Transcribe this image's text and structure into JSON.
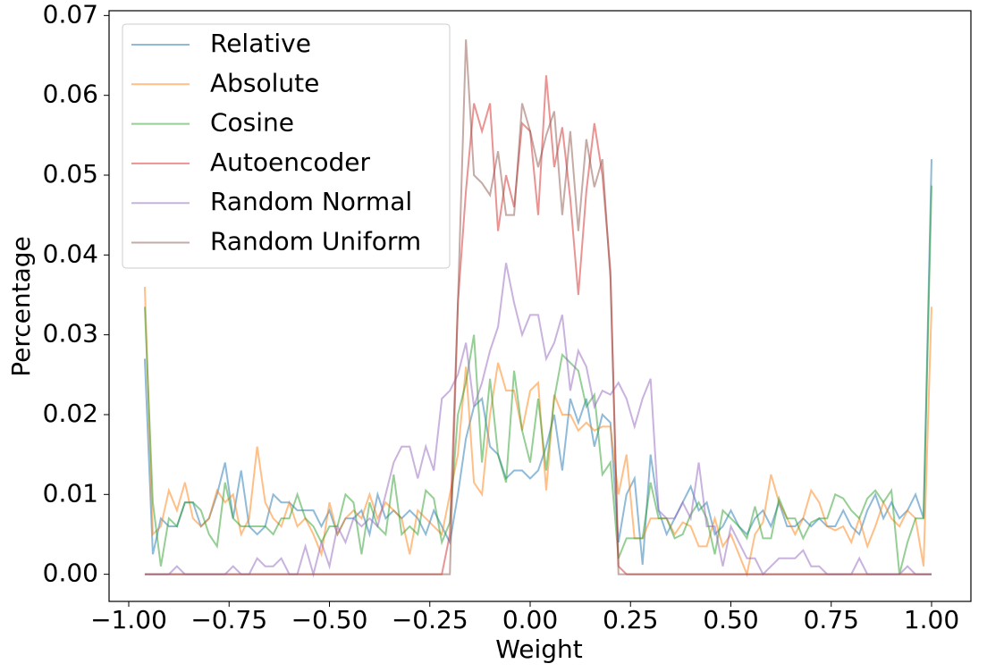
{
  "chart_data": {
    "type": "line",
    "xlabel": "Weight",
    "ylabel": "Percentage",
    "xlim": [
      -1.049,
      1.098
    ],
    "ylim": [
      -0.0034,
      0.0706
    ],
    "xticks": [
      {
        "value": -1,
        "label": "−1.00"
      },
      {
        "value": -0.75,
        "label": "−0.75"
      },
      {
        "value": -0.5,
        "label": "−0.50"
      },
      {
        "value": -0.25,
        "label": "−0.25"
      },
      {
        "value": 0,
        "label": "0.00"
      },
      {
        "value": 0.25,
        "label": "0.25"
      },
      {
        "value": 0.5,
        "label": "0.50"
      },
      {
        "value": 0.75,
        "label": "0.75"
      },
      {
        "value": 1,
        "label": "1.00"
      }
    ],
    "yticks": [
      {
        "value": 0,
        "label": "0.00"
      },
      {
        "value": 0.01,
        "label": "0.01"
      },
      {
        "value": 0.02,
        "label": "0.02"
      },
      {
        "value": 0.03,
        "label": "0.03"
      },
      {
        "value": 0.04,
        "label": "0.04"
      },
      {
        "value": 0.05,
        "label": "0.05"
      },
      {
        "value": 0.06,
        "label": "0.06"
      },
      {
        "value": 0.07,
        "label": "0.07"
      }
    ],
    "legend": "upper left",
    "x": [
      -0.96,
      -0.94,
      -0.92,
      -0.9,
      -0.88,
      -0.86,
      -0.84,
      -0.82,
      -0.8,
      -0.78,
      -0.76,
      -0.74,
      -0.72,
      -0.7,
      -0.68,
      -0.66,
      -0.64,
      -0.62,
      -0.6,
      -0.58,
      -0.56,
      -0.54,
      -0.52,
      -0.5,
      -0.48,
      -0.46,
      -0.44,
      -0.42,
      -0.4,
      -0.38,
      -0.36,
      -0.34,
      -0.32,
      -0.3,
      -0.28,
      -0.26,
      -0.24,
      -0.22,
      -0.2,
      -0.18,
      -0.16,
      -0.14,
      -0.12,
      -0.1,
      -0.08,
      -0.06,
      -0.04,
      -0.02,
      0,
      0.02,
      0.04,
      0.06,
      0.08,
      0.1,
      0.12,
      0.14,
      0.16,
      0.18,
      0.2,
      0.22,
      0.24,
      0.26,
      0.28,
      0.3,
      0.32,
      0.34,
      0.36,
      0.38,
      0.4,
      0.42,
      0.44,
      0.46,
      0.48,
      0.5,
      0.52,
      0.54,
      0.56,
      0.58,
      0.6,
      0.62,
      0.64,
      0.66,
      0.68,
      0.7,
      0.72,
      0.74,
      0.76,
      0.78,
      0.8,
      0.82,
      0.84,
      0.86,
      0.88,
      0.9,
      0.92,
      0.94,
      0.96,
      0.98,
      1.0
    ],
    "series": [
      {
        "name": "Relative",
        "color": "#1f77b4",
        "values": [
          0.027,
          0.0025,
          0.007,
          0.006,
          0.006,
          0.009,
          0.009,
          0.006,
          0.007,
          0.01,
          0.014,
          0.007,
          0.013,
          0.006,
          0.005,
          0.006,
          0.01,
          0.009,
          0.009,
          0.008,
          0.008,
          0.008,
          0.006,
          0.008,
          0.005,
          0.007,
          0.007,
          0.008,
          0.005,
          0.01,
          0.007,
          0.008,
          0.007,
          0.008,
          0.007,
          0.005,
          0.008,
          0.006,
          0.004,
          0.01,
          0.017,
          0.021,
          0.022,
          0.016,
          0.015,
          0.012,
          0.013,
          0.013,
          0.012,
          0.013,
          0.016,
          0.02,
          0.013,
          0.022,
          0.019,
          0.022,
          0.016,
          0.02,
          0.019,
          0.004,
          0.01,
          0.012,
          0.0012,
          0.015,
          0.008,
          0.005,
          0.007,
          0.009,
          0.011,
          0.008,
          0.009,
          0.005,
          0.006,
          0.008,
          0.006,
          0.005,
          0.007,
          0.008,
          0.006,
          0.009,
          0.006,
          0.006,
          0.007,
          0.006,
          0.007,
          0.006,
          0.006,
          0.008,
          0.006,
          0.005,
          0.008,
          0.01,
          0.007,
          0.009,
          0.007,
          0.008,
          0.01,
          0.007,
          0.052
        ]
      },
      {
        "name": "Absolute",
        "color": "#ff7f0e",
        "values": [
          0.036,
          0.005,
          0.006,
          0.0105,
          0.008,
          0.0115,
          0.007,
          0.006,
          0.007,
          0.0105,
          0.009,
          0.01,
          0.005,
          0.007,
          0.016,
          0.009,
          0.007,
          0.006,
          0.009,
          0.006,
          0.007,
          0.005,
          0.0025,
          0.009,
          0.005,
          0.007,
          0.008,
          0.007,
          0.01,
          0.007,
          0.009,
          0.008,
          0.007,
          0.0025,
          0.008,
          0.007,
          0.006,
          0.005,
          0.01,
          0.015,
          0.026,
          0.0115,
          0.01,
          0.02,
          0.0265,
          0.023,
          0.023,
          0.018,
          0.023,
          0.024,
          0.0105,
          0.0225,
          0.02,
          0.02,
          0.018,
          0.019,
          0.018,
          0.0185,
          0.0185,
          0.01,
          0.015,
          0.0045,
          0.0045,
          0.007,
          0.007,
          0.007,
          0.005,
          0.0065,
          0.006,
          0.0035,
          0.0035,
          0.007,
          0.0035,
          0.005,
          0.0025,
          0.0,
          0.005,
          0.0065,
          0.0125,
          0.009,
          0.007,
          0.005,
          0.007,
          0.0105,
          0.009,
          0.006,
          0.0055,
          0.006,
          0.004,
          0.007,
          0.0035,
          0.006,
          0.009,
          0.007,
          0.006,
          0.008,
          0.007,
          0.001,
          0.0335
        ]
      },
      {
        "name": "Cosine",
        "color": "#2ca02c",
        "values": [
          0.0335,
          0.009,
          0.001,
          0.007,
          0.006,
          0.009,
          0.009,
          0.008,
          0.005,
          0.0035,
          0.0115,
          0.007,
          0.006,
          0.006,
          0.006,
          0.006,
          0.005,
          0.007,
          0.007,
          0.01,
          0.007,
          0.006,
          0.004,
          0.006,
          0.006,
          0.01,
          0.009,
          0.0025,
          0.009,
          0.006,
          0.005,
          0.0125,
          0.005,
          0.006,
          0.005,
          0.0105,
          0.0095,
          0.004,
          0.0065,
          0.02,
          0.024,
          0.03,
          0.014,
          0.0245,
          0.015,
          0.0115,
          0.0255,
          0.018,
          0.014,
          0.022,
          0.013,
          0.022,
          0.0275,
          0.0265,
          0.0255,
          0.021,
          0.0225,
          0.0125,
          0.014,
          0.002,
          0.0045,
          0.0045,
          0.0045,
          0.0115,
          0.007,
          0.007,
          0.0045,
          0.005,
          0.0075,
          0.009,
          0.007,
          0.0025,
          0.008,
          0.007,
          0.006,
          0.0045,
          0.0085,
          0.0045,
          0.0045,
          0.0095,
          0.007,
          0.007,
          0.0045,
          0.0065,
          0.007,
          0.007,
          0.01,
          0.0095,
          0.008,
          0.007,
          0.0095,
          0.0105,
          0.009,
          0.0105,
          0.0,
          0.004,
          0.007,
          0.007,
          0.0487
        ]
      },
      {
        "name": "Autoencoder",
        "color": "#d62728",
        "values": [
          0,
          0,
          0,
          0,
          0,
          0,
          0,
          0,
          0,
          0,
          0,
          0,
          0,
          0,
          0,
          0,
          0,
          0,
          0,
          0,
          0,
          0,
          0,
          0,
          0,
          0,
          0,
          0,
          0,
          0,
          0,
          0,
          0,
          0,
          0,
          0,
          0,
          0,
          0.005,
          0.034,
          0.048,
          0.059,
          0.0555,
          0.059,
          0.043,
          0.05,
          0.046,
          0.0565,
          0.0555,
          0.045,
          0.0625,
          0.051,
          0.056,
          0.047,
          0.035,
          0.048,
          0.0565,
          0.05,
          0.038,
          0.001,
          0,
          0,
          0,
          0,
          0,
          0,
          0,
          0,
          0,
          0,
          0,
          0,
          0,
          0,
          0,
          0,
          0,
          0,
          0,
          0,
          0,
          0,
          0,
          0,
          0,
          0,
          0,
          0,
          0,
          0,
          0,
          0,
          0,
          0,
          0,
          0,
          0,
          0,
          0
        ]
      },
      {
        "name": "Random Normal",
        "color": "#9467bd",
        "values": [
          0,
          0,
          0,
          0,
          0.001,
          0,
          0,
          0,
          0,
          0,
          0,
          0.001,
          0,
          0,
          0.002,
          0.001,
          0.001,
          0.002,
          0,
          0,
          0.0035,
          0,
          0.004,
          0.001,
          0.006,
          0.004,
          0.007,
          0.006,
          0.007,
          0.006,
          0.01,
          0.014,
          0.016,
          0.016,
          0.012,
          0.016,
          0.013,
          0.022,
          0.023,
          0.025,
          0.029,
          0.021,
          0.024,
          0.028,
          0.031,
          0.039,
          0.034,
          0.03,
          0.0325,
          0.0325,
          0.027,
          0.029,
          0.0325,
          0.023,
          0.028,
          0.026,
          0.021,
          0.023,
          0.0225,
          0.024,
          0.022,
          0.0185,
          0.022,
          0.0245,
          0.008,
          0.007,
          0.007,
          0.009,
          0.007,
          0.014,
          0.006,
          0.006,
          0.001,
          0.006,
          0.004,
          0.002,
          0.002,
          0.0,
          0.001,
          0.002,
          0.002,
          0.002,
          0.003,
          0.001,
          0.001,
          0,
          0,
          0,
          0,
          0.002,
          0,
          0,
          0,
          0,
          0,
          0.001,
          0,
          0,
          0
        ]
      },
      {
        "name": "Random Uniform",
        "color": "#8c564b",
        "values": [
          0,
          0,
          0,
          0,
          0,
          0,
          0,
          0,
          0,
          0,
          0,
          0,
          0,
          0,
          0,
          0,
          0,
          0,
          0,
          0,
          0,
          0,
          0,
          0,
          0,
          0,
          0,
          0,
          0,
          0,
          0,
          0,
          0,
          0,
          0,
          0,
          0,
          0,
          0,
          0.034,
          0.067,
          0.05,
          0.049,
          0.0475,
          0.053,
          0.045,
          0.045,
          0.059,
          0.0555,
          0.051,
          0.055,
          0.058,
          0.045,
          0.0555,
          0.043,
          0.0545,
          0.0485,
          0.052,
          0.037,
          0,
          0,
          0,
          0,
          0,
          0,
          0,
          0,
          0,
          0,
          0,
          0,
          0,
          0,
          0,
          0,
          0,
          0,
          0,
          0,
          0,
          0,
          0,
          0,
          0,
          0,
          0,
          0,
          0,
          0,
          0,
          0,
          0,
          0,
          0,
          0,
          0,
          0,
          0,
          0
        ]
      }
    ]
  }
}
